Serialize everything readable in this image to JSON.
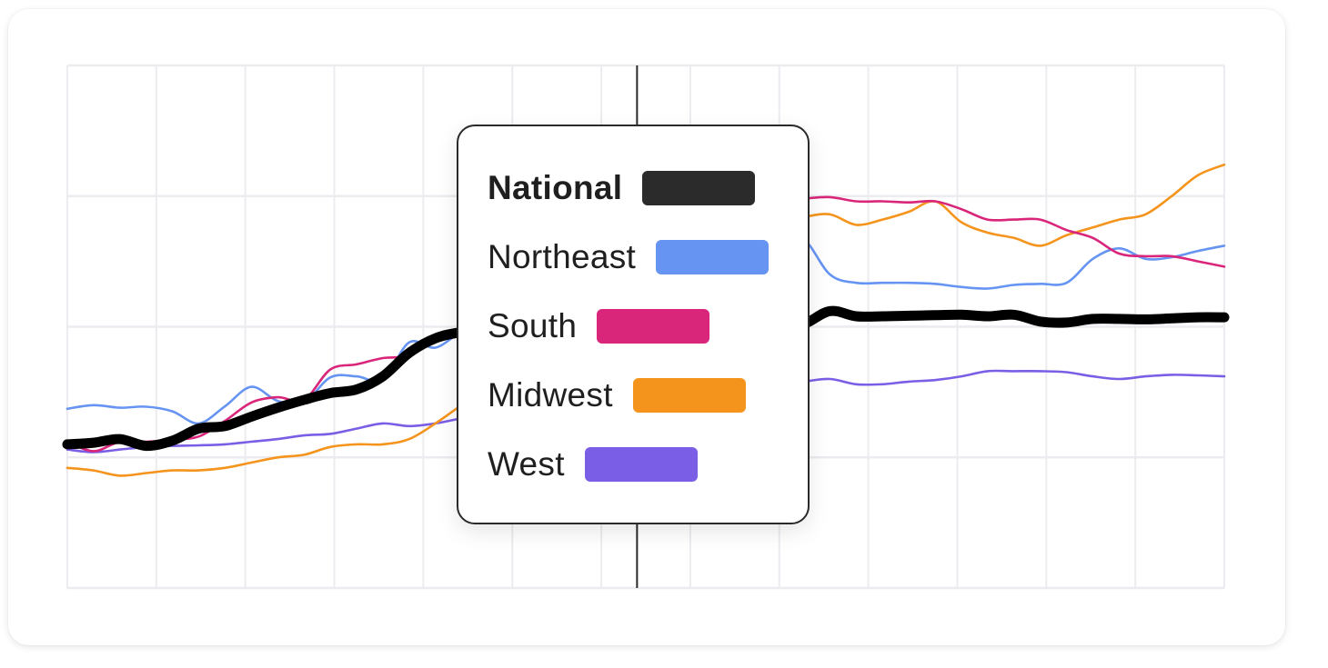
{
  "chart_data": {
    "type": "line",
    "title": "",
    "xlabel": "",
    "ylabel": "",
    "grid": true,
    "x": [
      0,
      3,
      6,
      9,
      12,
      15,
      18,
      21,
      24,
      27,
      30,
      33,
      36,
      39,
      42,
      45,
      48,
      51,
      54,
      57,
      60,
      63,
      66,
      69,
      72,
      75,
      78,
      81,
      84,
      87,
      90,
      93,
      96,
      99,
      102,
      105,
      108,
      111,
      114,
      117,
      120,
      123,
      126,
      129,
      132
    ],
    "xlim": [
      0,
      132
    ],
    "ylim": [
      0,
      100
    ],
    "highlight_x": 65,
    "series": [
      {
        "name": "National",
        "color": "#000000",
        "values": [
          27.5,
          27.8,
          28.5,
          27.2,
          28.2,
          30.5,
          31.0,
          32.8,
          34.5,
          36.0,
          37.3,
          38.0,
          40.5,
          45.0,
          47.8,
          49.0,
          49.5,
          49.3,
          49.5,
          49.5,
          49.7,
          49.8,
          50.0,
          49.8,
          50.0,
          50.2,
          50.0,
          50.0,
          50.5,
          53.0,
          52.0,
          52.0,
          52.1,
          52.2,
          52.3,
          52.0,
          52.3,
          51.0,
          50.8,
          51.5,
          51.5,
          51.4,
          51.6,
          51.8,
          51.8
        ]
      },
      {
        "name": "Northeast",
        "color": "#6694f2",
        "values": [
          34.3,
          35.0,
          34.5,
          34.7,
          33.8,
          31.5,
          34.8,
          38.5,
          35.8,
          35.5,
          40.3,
          40.5,
          39.9,
          47.0,
          46.0,
          49.0,
          50.0,
          53.7,
          66.6,
          69.5,
          70.0,
          69.5,
          69.0,
          67.2,
          67.2,
          66.5,
          65.9,
          65.9,
          66.7,
          60.0,
          58.4,
          58.4,
          58.4,
          58.2,
          57.6,
          57.3,
          58.0,
          58.2,
          58.4,
          63.0,
          65.0,
          63.0,
          63.3,
          64.5,
          65.5
        ]
      },
      {
        "name": "South",
        "color": "#d9267a",
        "values": [
          28.0,
          26.2,
          28.0,
          28.0,
          28.4,
          29.0,
          32.0,
          35.5,
          36.5,
          36.0,
          41.8,
          42.8,
          44.0,
          44.5,
          47.5,
          48.5,
          49.0,
          51.0,
          54.0,
          58.0,
          62.0,
          65.0,
          68.0,
          71.2,
          72.0,
          73.0,
          73.5,
          74.0,
          74.5,
          74.8,
          74.0,
          74.0,
          73.8,
          74.0,
          72.5,
          70.5,
          70.5,
          70.5,
          68.5,
          67.0,
          64.0,
          63.5,
          63.5,
          62.5,
          61.5
        ]
      },
      {
        "name": "Midwest",
        "color": "#f5941d",
        "values": [
          23.0,
          22.5,
          21.5,
          22.0,
          22.5,
          22.5,
          23.0,
          24.0,
          25.0,
          25.5,
          27.0,
          27.5,
          27.5,
          28.5,
          31.5,
          35.0,
          38.0,
          42.0,
          46.0,
          50.0,
          52.0,
          53.0,
          53.5,
          55.0,
          58.0,
          62.0,
          66.0,
          70.0,
          71.0,
          71.5,
          69.5,
          70.5,
          72.0,
          74.0,
          70.0,
          68.0,
          67.0,
          65.5,
          67.5,
          69.0,
          70.5,
          71.5,
          75.0,
          79.0,
          81.0
        ]
      },
      {
        "name": "West",
        "color": "#7b5ee6",
        "values": [
          26.5,
          26.0,
          26.5,
          27.0,
          27.2,
          27.3,
          27.5,
          28.0,
          28.5,
          29.2,
          29.5,
          30.5,
          31.5,
          31.0,
          31.5,
          32.5,
          33.5,
          34.5,
          36.0,
          37.5,
          38.5,
          39.0,
          39.5,
          38.5,
          38.5,
          38.5,
          38.5,
          39.0,
          39.5,
          40.0,
          39.0,
          39.0,
          39.5,
          39.8,
          40.5,
          41.5,
          41.5,
          41.5,
          41.3,
          40.5,
          40.0,
          40.5,
          40.8,
          40.7,
          40.5
        ]
      }
    ]
  },
  "legend": {
    "items": [
      {
        "label": "National",
        "color": "#2b2b2b",
        "bold": true
      },
      {
        "label": "Northeast",
        "color": "#6694f2",
        "bold": false
      },
      {
        "label": "South",
        "color": "#d9267a",
        "bold": false
      },
      {
        "label": "Midwest",
        "color": "#f5941d",
        "bold": false
      },
      {
        "label": "West",
        "color": "#7b5ee6",
        "bold": false
      }
    ]
  }
}
